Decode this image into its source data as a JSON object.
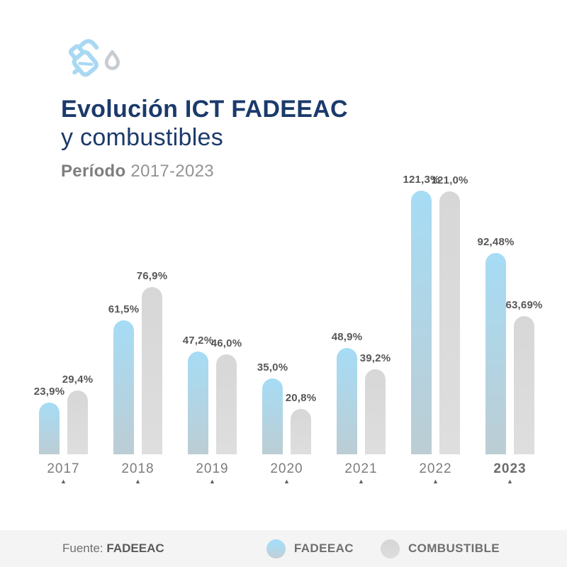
{
  "header": {
    "icon_name": "fuel-nozzle-icon",
    "title_line1": "Evolución ICT FADEEAC",
    "title_line2": "y combustibles",
    "period_label": "Período",
    "period_value": "2017-2023"
  },
  "chart_data": {
    "type": "bar",
    "title": "Evolución ICT FADEEAC y combustibles",
    "categories": [
      "2017",
      "2018",
      "2019",
      "2020",
      "2021",
      "2022",
      "2023"
    ],
    "emphasized_category": "2023",
    "series": [
      {
        "name": "FADEEAC",
        "values": [
          23.9,
          61.5,
          47.2,
          35.0,
          48.9,
          121.3,
          92.48
        ],
        "labels": [
          "23,9%",
          "61,5%",
          "47,2%",
          "35,0%",
          "48,9%",
          "121,3%",
          "92,48%"
        ],
        "color_top": "#a6dcf5",
        "color_bottom": "#bccdd4"
      },
      {
        "name": "COMBUSTIBLE",
        "values": [
          29.4,
          76.9,
          46.0,
          20.8,
          39.2,
          121.0,
          63.69
        ],
        "labels": [
          "29,4%",
          "76,9%",
          "46,0%",
          "20,8%",
          "39,2%",
          "121,0%",
          "63,69%"
        ],
        "color_top": "#d7d7d7",
        "color_bottom": "#dedede"
      }
    ],
    "ylim": [
      0,
      121.3
    ],
    "grid": false,
    "legend_position": "bottom",
    "value_suffix": "%"
  },
  "footer": {
    "source_label": "Fuente:",
    "source_value": "FADEEAC",
    "legend": [
      {
        "label": "FADEEAC",
        "swatch_top": "#a6dcf5",
        "swatch_bottom": "#c3cfd6"
      },
      {
        "label": "COMBUSTIBLE",
        "swatch_top": "#d7d7d7",
        "swatch_bottom": "#dddddd"
      }
    ]
  },
  "colors": {
    "title_navy": "#1b3a6b",
    "icon_blue": "#a9d8f3",
    "icon_droplet_gray": "#c7ccd0",
    "value_label": "#575757",
    "year_label": "#7c7c7c",
    "axis_marker": "#5d6165",
    "footer_bg": "#f4f4f4",
    "footer_text": "#6f6f6f"
  }
}
